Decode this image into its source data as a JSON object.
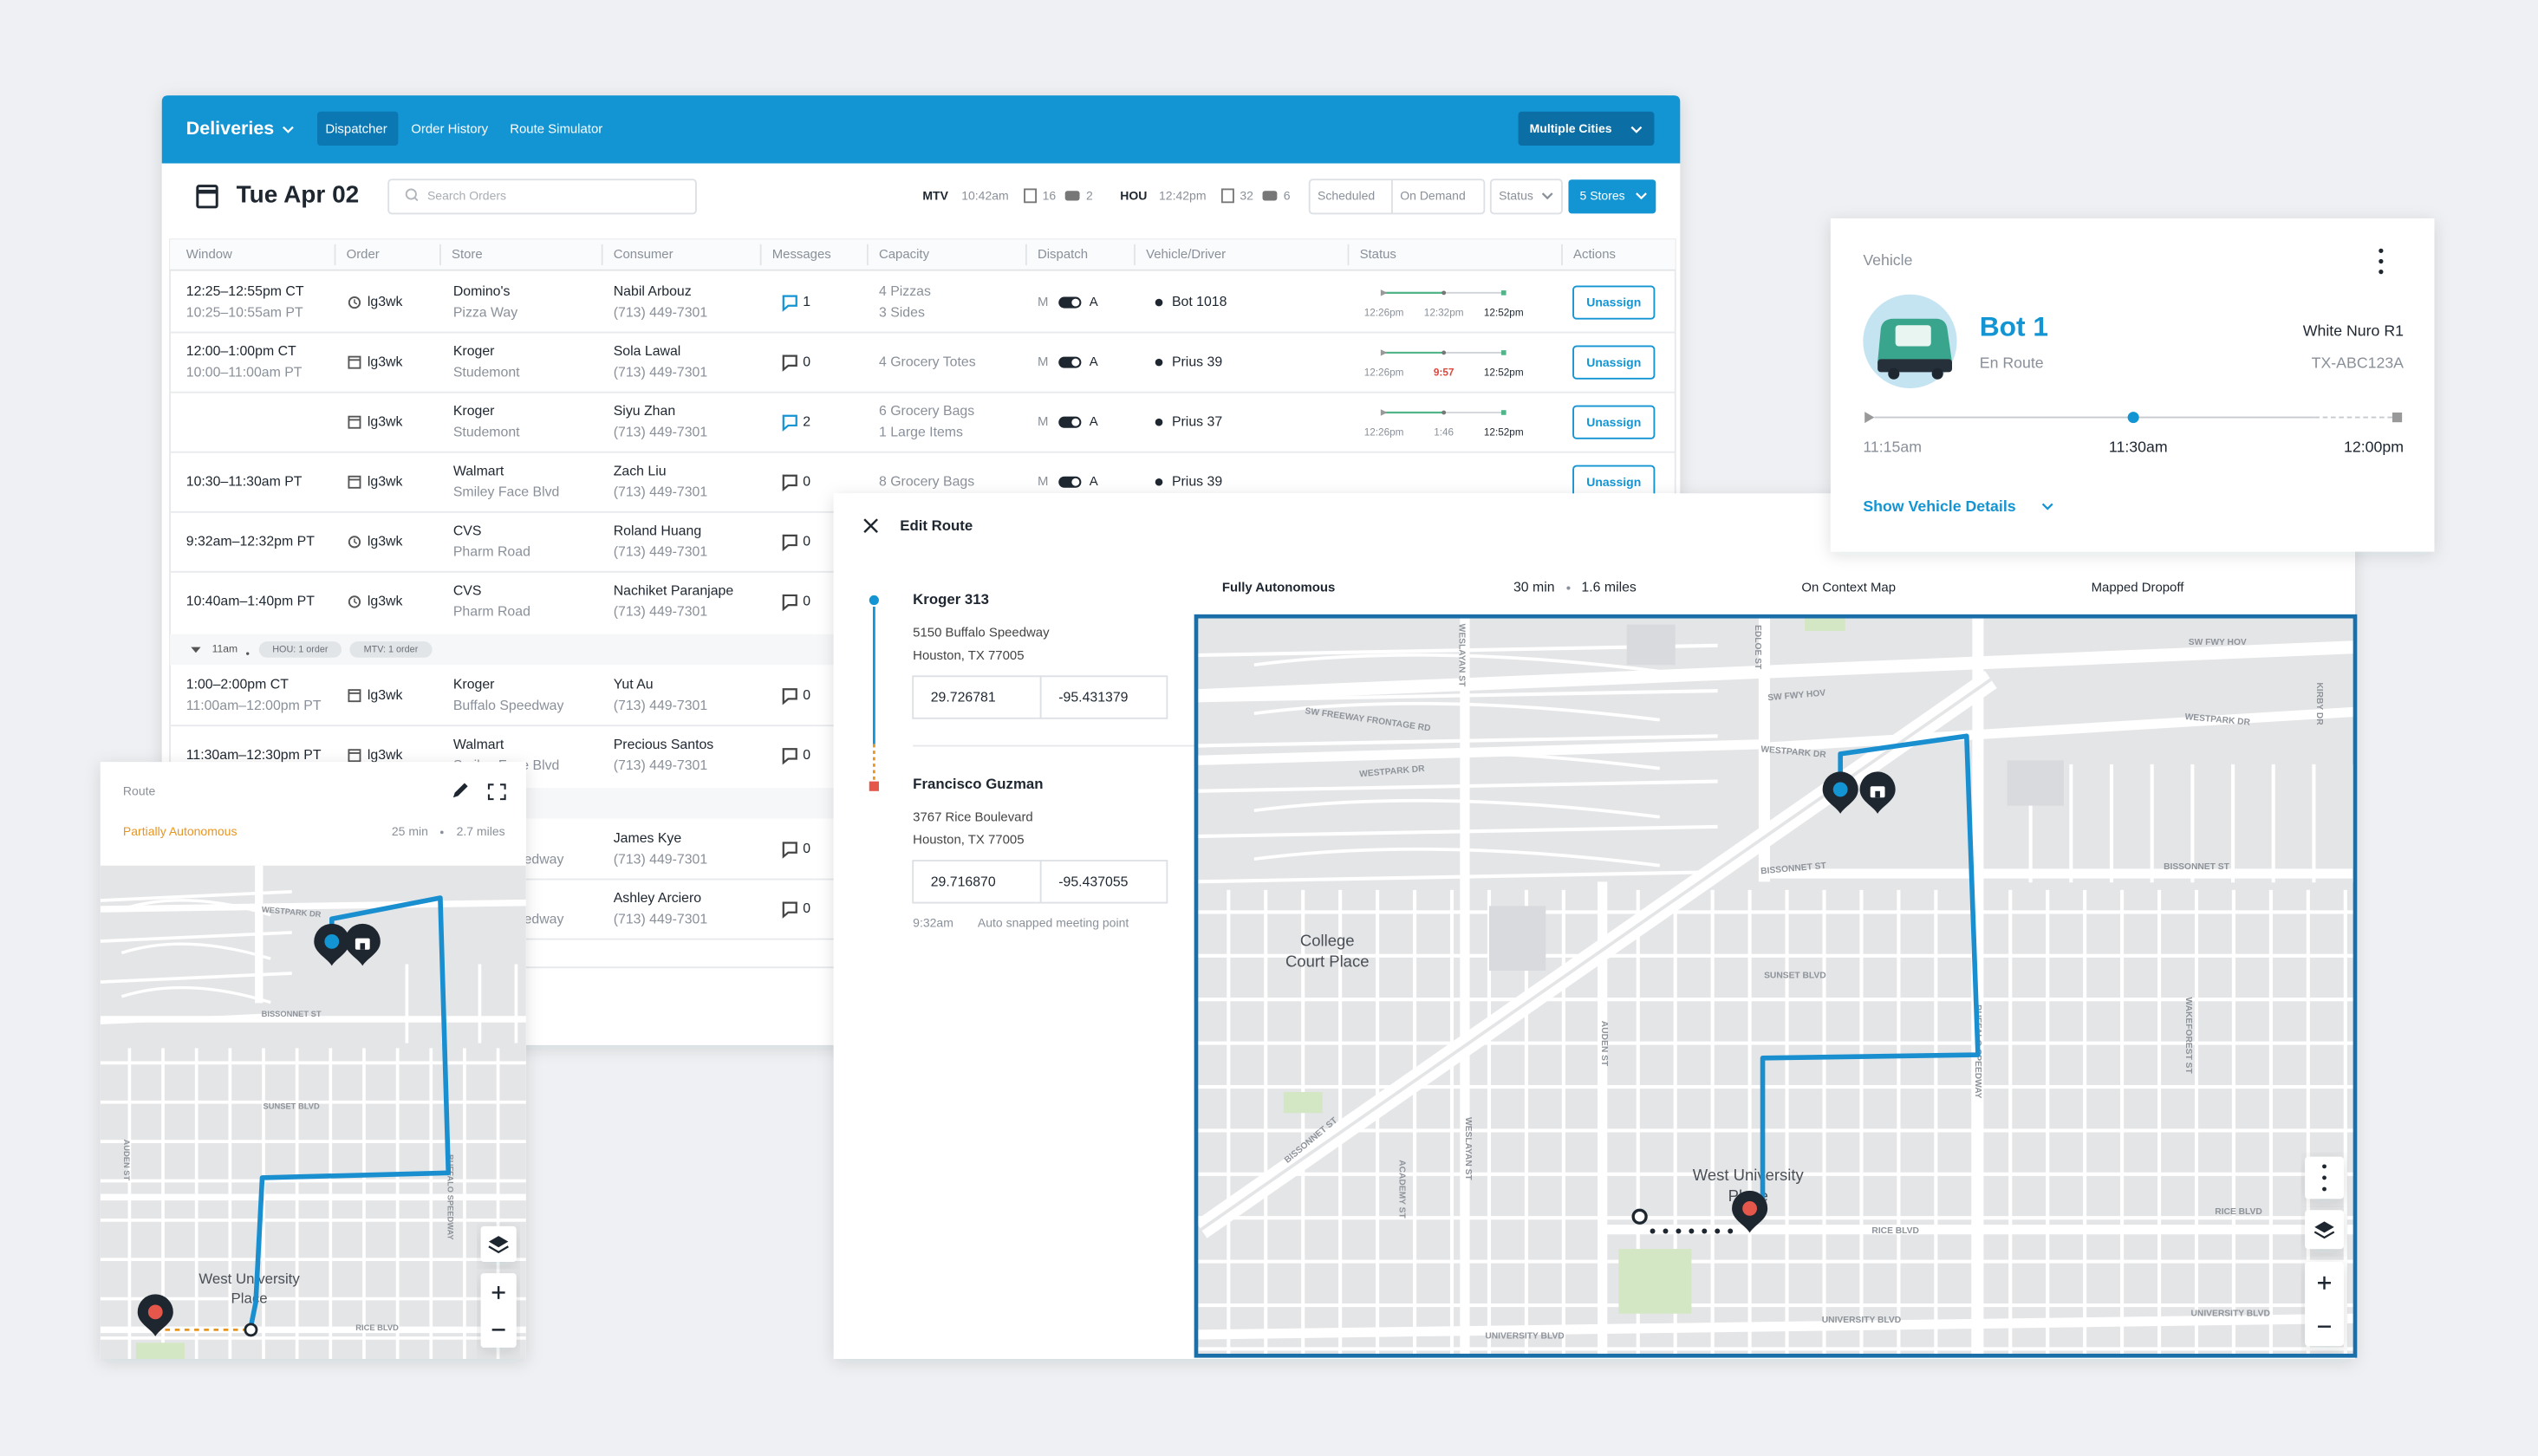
{
  "header": {
    "brand": "Deliveries",
    "tabs": [
      "Dispatcher",
      "Order History",
      "Route Simulator"
    ],
    "city_select": "Multiple Cities"
  },
  "toolbar": {
    "date": "Tue Apr 02",
    "search_placeholder": "Search Orders",
    "hubs": [
      {
        "code": "MTV",
        "time": "10:42am",
        "orders": "16",
        "vehicles": "2"
      },
      {
        "code": "HOU",
        "time": "12:42pm",
        "orders": "32",
        "vehicles": "6"
      }
    ],
    "filters": [
      "Scheduled",
      "On Demand"
    ],
    "status": "Status",
    "stores": "5 Stores"
  },
  "table": {
    "columns": [
      "Window",
      "Order",
      "Store",
      "Consumer",
      "Messages",
      "Capacity",
      "Dispatch",
      "Vehicle/Driver",
      "Status",
      "Actions"
    ],
    "rows": [
      {
        "window": [
          "12:25–12:55pm CT",
          "10:25–10:55am PT"
        ],
        "order": "lg3wk",
        "icon": "clock",
        "store": "Domino's",
        "store_detail": "Pizza Way",
        "consumer": "Nabil Arbouz",
        "phone": "(713) 449-7301",
        "messages": "1",
        "capacity": [
          "4 Pizzas",
          "3 Sides"
        ],
        "dispatch": [
          "M",
          "A"
        ],
        "driver": "Bot 1018",
        "status": [
          "12:26pm",
          "12:32pm",
          "12:52pm"
        ],
        "action": "Unassign"
      },
      {
        "window": [
          "12:00–1:00pm CT",
          "10:00–11:00am PT"
        ],
        "order": "lg3wk",
        "icon": "calendar",
        "store": "Kroger",
        "store_detail": "Studemont",
        "consumer": "Sola Lawal",
        "phone": "(713) 449-7301",
        "messages": "0",
        "capacity": [
          "4 Grocery Totes"
        ],
        "dispatch": [
          "M",
          "A"
        ],
        "driver": "Prius 39",
        "status": [
          "12:26pm",
          "9:57",
          "12:52pm"
        ],
        "late": true,
        "action": "Unassign"
      },
      {
        "order": "lg3wk",
        "icon": "calendar",
        "store": "Kroger",
        "store_detail": "Studemont",
        "consumer": "Siyu Zhan",
        "phone": "(713) 449-7301",
        "messages": "2",
        "capacity": [
          "6 Grocery Bags",
          "1 Large Items"
        ],
        "dispatch": [
          "M",
          "A"
        ],
        "driver": "Prius 37",
        "status": [
          "12:26pm",
          "1:46",
          "12:52pm"
        ],
        "action": "Unassign"
      },
      {
        "window": [
          "10:30–11:30am PT"
        ],
        "order": "lg3wk",
        "icon": "calendar",
        "store": "Walmart",
        "store_detail": "Smiley Face Blvd",
        "consumer": "Zach Liu",
        "phone": "(713) 449-7301",
        "messages": "0",
        "capacity": [
          "8 Grocery Bags"
        ],
        "dispatch": [
          "M",
          "A"
        ],
        "driver": "Prius 39",
        "action": "Unassign"
      },
      {
        "window": [
          "9:32am–12:32pm PT"
        ],
        "order": "lg3wk",
        "icon": "clock",
        "store": "CVS",
        "store_detail": "Pharm Road",
        "consumer": "Roland Huang",
        "phone": "(713) 449-7301",
        "messages": "0"
      },
      {
        "window": [
          "10:40am–1:40pm PT"
        ],
        "order": "lg3wk",
        "icon": "clock",
        "store": "CVS",
        "store_detail": "Pharm Road",
        "consumer": "Nachiket Paranjape",
        "phone": "(713) 449-7301",
        "messages": "0"
      },
      {
        "window": [
          "1:00–2:00pm CT",
          "11:00am–12:00pm PT"
        ],
        "order": "lg3wk",
        "icon": "calendar",
        "store": "Kroger",
        "store_detail": "Buffalo Speedway",
        "consumer": "Yut Au",
        "phone": "(713) 449-7301",
        "messages": "0"
      },
      {
        "window": [
          "11:30am–12:30pm PT"
        ],
        "order": "lg3wk",
        "icon": "calendar",
        "store": "Walmart",
        "store_detail": "Smiley Face Blvd",
        "consumer": "Precious Santos",
        "phone": "(713) 449-7301",
        "messages": "0"
      },
      {
        "store_detail": "Buffalo Speedway",
        "consumer": "James Kye",
        "phone": "(713) 449-7301",
        "messages": "0"
      },
      {
        "store_detail": "Buffalo Speedway",
        "consumer": "Ashley Arciero",
        "phone": "(713) 449-7301",
        "messages": "0"
      }
    ],
    "group": {
      "time": "11am",
      "tags": [
        "HOU: 1 order",
        "MTV: 1 order"
      ]
    }
  },
  "vehicle": {
    "label": "Vehicle",
    "name": "Bot 1",
    "state": "En Route",
    "model": "White Nuro R1",
    "plate": "TX-ABC123A",
    "times": [
      "11:15am",
      "11:30am",
      "12:00pm"
    ],
    "link": "Show Vehicle Details"
  },
  "edit_route": {
    "title": "Edit Route",
    "stops": [
      {
        "name": "Kroger 313",
        "address": [
          "5150 Buffalo Speedway",
          "Houston, TX 77005"
        ],
        "lat": "29.726781",
        "lng": "-95.431379"
      },
      {
        "name": "Francisco Guzman",
        "address": [
          "3767 Rice Boulevard",
          "Houston, TX 77005"
        ],
        "lat": "29.716870",
        "lng": "-95.437055"
      }
    ],
    "note_time": "9:32am",
    "note": "Auto snapped meeting point",
    "summary": {
      "mode": "Fully Autonomous",
      "duration": "30 min",
      "distance": "1.6 miles",
      "map_mode": "On Context Map",
      "dropoff": "Mapped Dropoff"
    },
    "map_labels": [
      "WESLAYAN ST",
      "EDLOE ST",
      "SW FWY HOV",
      "KIRBY DR",
      "SW FWY HOV",
      "SW FREEWAY FRONTAGE RD",
      "WESTPARK DR",
      "WESTPARK DR",
      "WESTPARK DR",
      "BISSONNET ST",
      "BISSONNET ST",
      "College",
      "Court Place",
      "SUNSET BLVD",
      "AUDEN ST",
      "WAKEFOREST ST",
      "BISSONNET ST",
      "ACADEMY ST",
      "WESLAYAN ST",
      "BUFFALO SPEEDWAY",
      "West University",
      "Place",
      "RICE BLVD",
      "RICE BLVD",
      "UNIVERSITY BLVD",
      "UNIVERSITY BLVD",
      "UNIVERSITY BLVD"
    ]
  },
  "route_card": {
    "title": "Route",
    "mode": "Partially Autonomous",
    "duration": "25 min",
    "distance": "2.7 miles",
    "map_labels": [
      "WESTPARK DR",
      "BISSONNET ST",
      "SUNSET BLVD",
      "AUDEN ST",
      "BUFFALO SPEEDWAY",
      "West University",
      "Place",
      "RICE BLVD"
    ]
  }
}
